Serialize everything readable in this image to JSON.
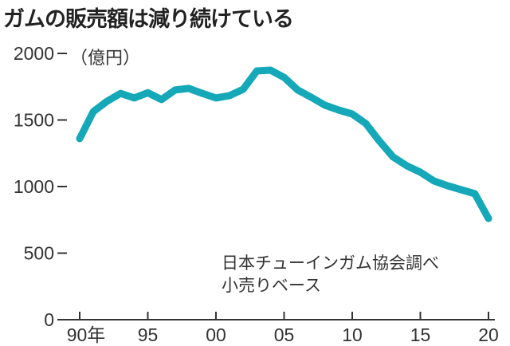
{
  "chart_data": {
    "type": "line",
    "title": "ガムの販売額は減り続けている",
    "ylabel": "（億円）",
    "xlabel": "",
    "ylim": [
      0,
      2000
    ],
    "xlim": [
      1990,
      2020
    ],
    "grid": false,
    "y_ticks": [
      "2000",
      "1500",
      "1000",
      "500",
      "0"
    ],
    "y_tick_values": [
      2000,
      1500,
      1000,
      500,
      0
    ],
    "x_ticks": [
      "90年",
      "95",
      "00",
      "05",
      "10",
      "15",
      "20"
    ],
    "x_tick_values": [
      1990,
      1995,
      2000,
      2005,
      2010,
      2015,
      2020
    ],
    "source_note": [
      "日本チューインガム協会調べ",
      "小売りベース"
    ],
    "color": "#14a8b8",
    "series": [
      {
        "name": "ガム販売額",
        "x": [
          1990,
          1991,
          1992,
          1993,
          1994,
          1995,
          1996,
          1997,
          1998,
          1999,
          2000,
          2001,
          2002,
          2003,
          2004,
          2005,
          2006,
          2007,
          2008,
          2009,
          2010,
          2011,
          2012,
          2013,
          2014,
          2015,
          2016,
          2017,
          2018,
          2019,
          2020
        ],
        "values": [
          1360,
          1563,
          1640,
          1700,
          1665,
          1705,
          1653,
          1725,
          1737,
          1700,
          1665,
          1683,
          1731,
          1868,
          1874,
          1820,
          1725,
          1670,
          1611,
          1575,
          1545,
          1473,
          1341,
          1222,
          1156,
          1108,
          1042,
          1006,
          976,
          946,
          760
        ]
      }
    ]
  }
}
